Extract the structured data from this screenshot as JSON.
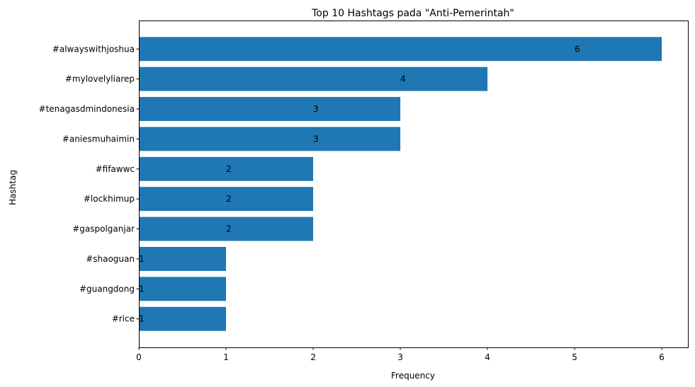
{
  "chart_data": {
    "type": "bar",
    "orientation": "horizontal",
    "title": "Top 10 Hashtags pada \"Anti-Pemerintah\"",
    "xlabel": "Frequency",
    "ylabel": "Hashtag",
    "categories": [
      "#alwayswithjoshua",
      "#mylovelyliarep",
      "#tenagasdmindonesia",
      "#aniesmuhaimin",
      "#fifawwc",
      "#lockhimup",
      "#gaspolganjar",
      "#shaoguan",
      "#guangdong",
      "#rice"
    ],
    "values": [
      6,
      4,
      3,
      3,
      2,
      2,
      2,
      1,
      1,
      1
    ],
    "xlim": [
      0,
      6.3
    ],
    "xticks": [
      0,
      1,
      2,
      3,
      4,
      5,
      6
    ],
    "bar_color": "#1f77b4",
    "grid": false
  }
}
